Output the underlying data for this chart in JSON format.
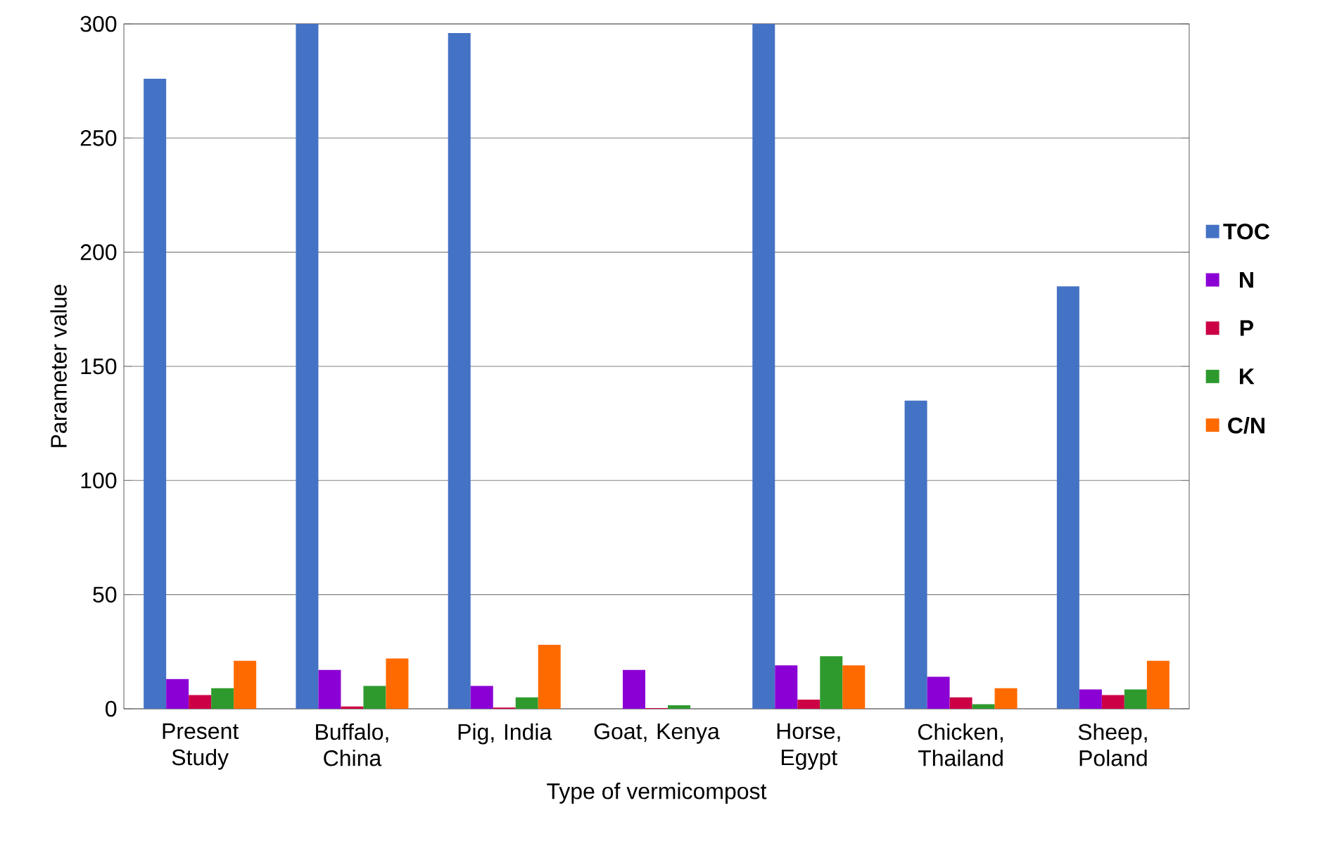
{
  "chart_data": {
    "type": "bar",
    "xlabel": "Type of vermicompost",
    "ylabel": "Parameter value",
    "categories": [
      "Present Study",
      "Buffalo, China",
      "Pig, India",
      "Goat, Kenya",
      "Horse, Egypt",
      "Chicken, Thailand",
      "Sheep, Poland"
    ],
    "series": [
      {
        "name": "TOC",
        "color": "#4472c4",
        "values": [
          276,
          300,
          296,
          null,
          300,
          135,
          185
        ]
      },
      {
        "name": "N",
        "color": "#8b00d4",
        "values": [
          13,
          17,
          10,
          17,
          19,
          14,
          8.5
        ]
      },
      {
        "name": "P",
        "color": "#cc0044",
        "values": [
          6,
          1,
          0.5,
          0.3,
          4,
          5,
          6
        ]
      },
      {
        "name": "K",
        "color": "#2e9a2e",
        "values": [
          9,
          10,
          5,
          1.5,
          23,
          2,
          8.5
        ]
      },
      {
        "name": "C/N",
        "color": "#ff6a00",
        "values": [
          21,
          22,
          28,
          null,
          19,
          9,
          21
        ]
      }
    ],
    "ylim": [
      0,
      300
    ],
    "yticks": [
      0,
      50,
      100,
      150,
      200,
      250,
      300
    ],
    "grid": "y",
    "legend": "right"
  }
}
